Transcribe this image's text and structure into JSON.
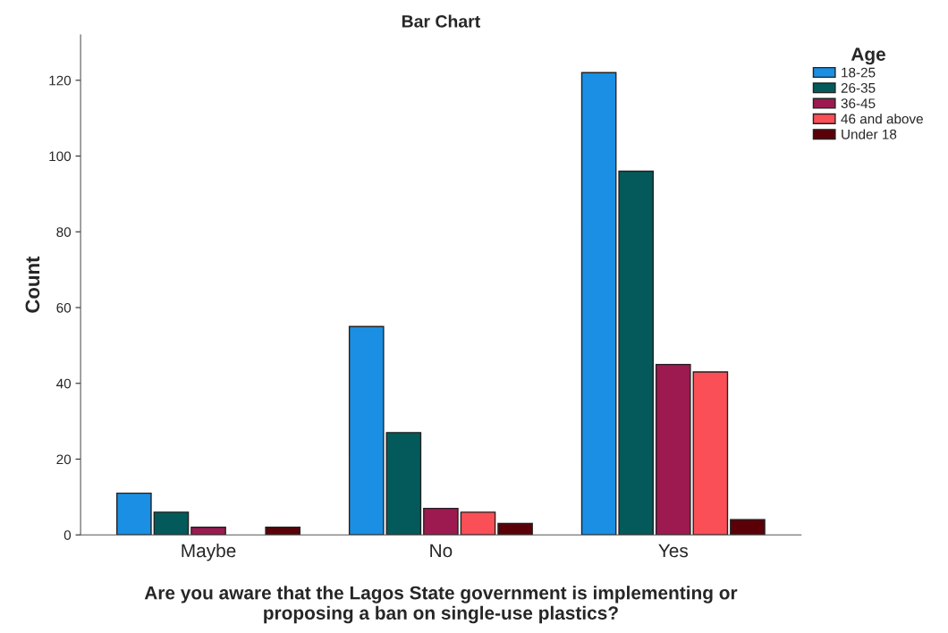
{
  "chart_data": {
    "type": "bar",
    "title": "Bar Chart",
    "xlabel": "Are you aware that the Lagos State government is implementing or\nproposing a ban on single-use plastics?",
    "ylabel": "Count",
    "legend_title": "Age",
    "categories": [
      "Maybe",
      "No",
      "Yes"
    ],
    "series": [
      {
        "name": "18-25",
        "color": "#1a8fe3",
        "values": [
          11,
          55,
          122
        ]
      },
      {
        "name": "26-35",
        "color": "#045a5a",
        "values": [
          6,
          27,
          96
        ]
      },
      {
        "name": "36-45",
        "color": "#9c1a4f",
        "values": [
          2,
          7,
          45
        ]
      },
      {
        "name": "46 and above",
        "color": "#fb4f57",
        "values": [
          null,
          6,
          43
        ]
      },
      {
        "name": "Under 18",
        "color": "#5c0008",
        "values": [
          2,
          3,
          4
        ]
      }
    ],
    "ylim": [
      0,
      132
    ],
    "yticks": [
      0,
      20,
      40,
      60,
      80,
      100,
      120
    ],
    "grid": false,
    "legend": "top right"
  }
}
